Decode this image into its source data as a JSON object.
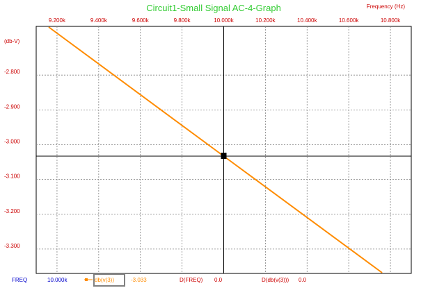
{
  "window": {
    "title": "Circuit1-Small Signal AC-4-Graph",
    "x_unit_label": "Frequency  (Hz)",
    "y_unit_label": "(db-V)"
  },
  "colors": {
    "title": "#33cc33",
    "axis_text": "#cc0000",
    "grid": "#808080",
    "trace": "#ff8c00",
    "cursor": "#000000",
    "readout_label": "#cc0000",
    "readout_freq": "#0000cc",
    "readout_value": "#ff8c00",
    "legend_box": "#808080"
  },
  "chart_data": {
    "type": "line",
    "title": "Circuit1-Small Signal AC-4-Graph",
    "xlabel": "Frequency  (Hz)",
    "ylabel": "(db-V)",
    "x_ticks": [
      "9.200k",
      "9.400k",
      "9.600k",
      "9.800k",
      "10.000k",
      "10.200k",
      "10.400k",
      "10.600k",
      "10.800k"
    ],
    "x_tick_values": [
      9200,
      9400,
      9600,
      9800,
      10000,
      10200,
      10400,
      10600,
      10800
    ],
    "y_ticks": [
      "-2.800",
      "-2.900",
      "-3.000",
      "-3.100",
      "-3.200",
      "-3.300"
    ],
    "y_tick_values": [
      -2.8,
      -2.9,
      -3.0,
      -3.1,
      -3.2,
      -3.3
    ],
    "xlim": [
      9100,
      10900
    ],
    "ylim": [
      -3.37,
      -2.66
    ],
    "grid": true,
    "series": [
      {
        "name": "db(v(3))",
        "x": [
          9160,
          10000,
          10760
        ],
        "y": [
          -2.662,
          -3.033,
          -3.368
        ]
      }
    ],
    "cursor": {
      "x": 10000,
      "y": -3.033
    }
  },
  "readout": {
    "freq_label": "FREQ",
    "freq_value": "10.000k",
    "series_name": "db(v(3))",
    "series_value": "-3.033",
    "dfreq_label": "D(FREQ)",
    "dfreq_value": "0.0",
    "dseries_label": "D(db(v(3)))",
    "dseries_value": "0.0"
  }
}
